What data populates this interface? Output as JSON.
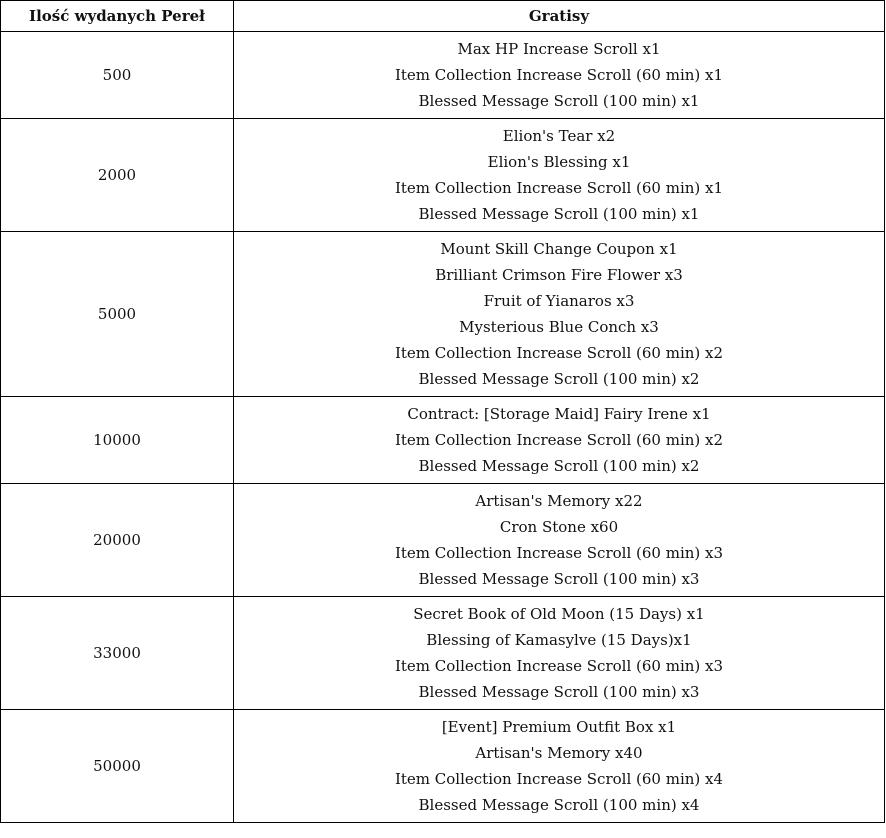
{
  "table": {
    "headers": [
      "Ilość wydanych Pereł",
      "Gratisy"
    ],
    "rows": [
      {
        "amount": "500",
        "rewards": [
          "Max HP Increase Scroll x1",
          "Item Collection Increase Scroll (60 min) x1",
          "Blessed Message Scroll (100 min) x1"
        ]
      },
      {
        "amount": "2000",
        "rewards": [
          "Elion's Tear x2",
          "Elion's Blessing x1",
          "Item Collection Increase Scroll (60 min) x1",
          "Blessed Message Scroll (100 min) x1"
        ]
      },
      {
        "amount": "5000",
        "rewards": [
          "Mount Skill Change Coupon x1",
          "Brilliant Crimson Fire Flower x3",
          "Fruit of Yianaros x3",
          "Mysterious Blue Conch x3",
          "Item Collection Increase Scroll (60 min) x2",
          "Blessed Message Scroll (100 min) x2"
        ]
      },
      {
        "amount": "10000",
        "rewards": [
          "Contract: [Storage Maid] Fairy Irene x1",
          "Item Collection Increase Scroll (60 min) x2",
          "Blessed Message Scroll (100 min) x2"
        ]
      },
      {
        "amount": "20000",
        "rewards": [
          "Artisan's Memory x22",
          "Cron Stone x60",
          "Item Collection Increase Scroll (60 min) x3",
          "Blessed Message Scroll (100 min) x3"
        ]
      },
      {
        "amount": "33000",
        "rewards": [
          "Secret Book of Old Moon (15 Days) x1",
          "Blessing of Kamasylve (15 Days)x1",
          "Item Collection Increase Scroll (60 min) x3",
          "Blessed Message Scroll (100 min) x3"
        ]
      },
      {
        "amount": "50000",
        "rewards": [
          "[Event] Premium Outfit Box x1",
          "Artisan's Memory x40",
          "Item Collection Increase Scroll (60 min) x4",
          "Blessed Message Scroll (100 min) x4"
        ]
      }
    ]
  }
}
